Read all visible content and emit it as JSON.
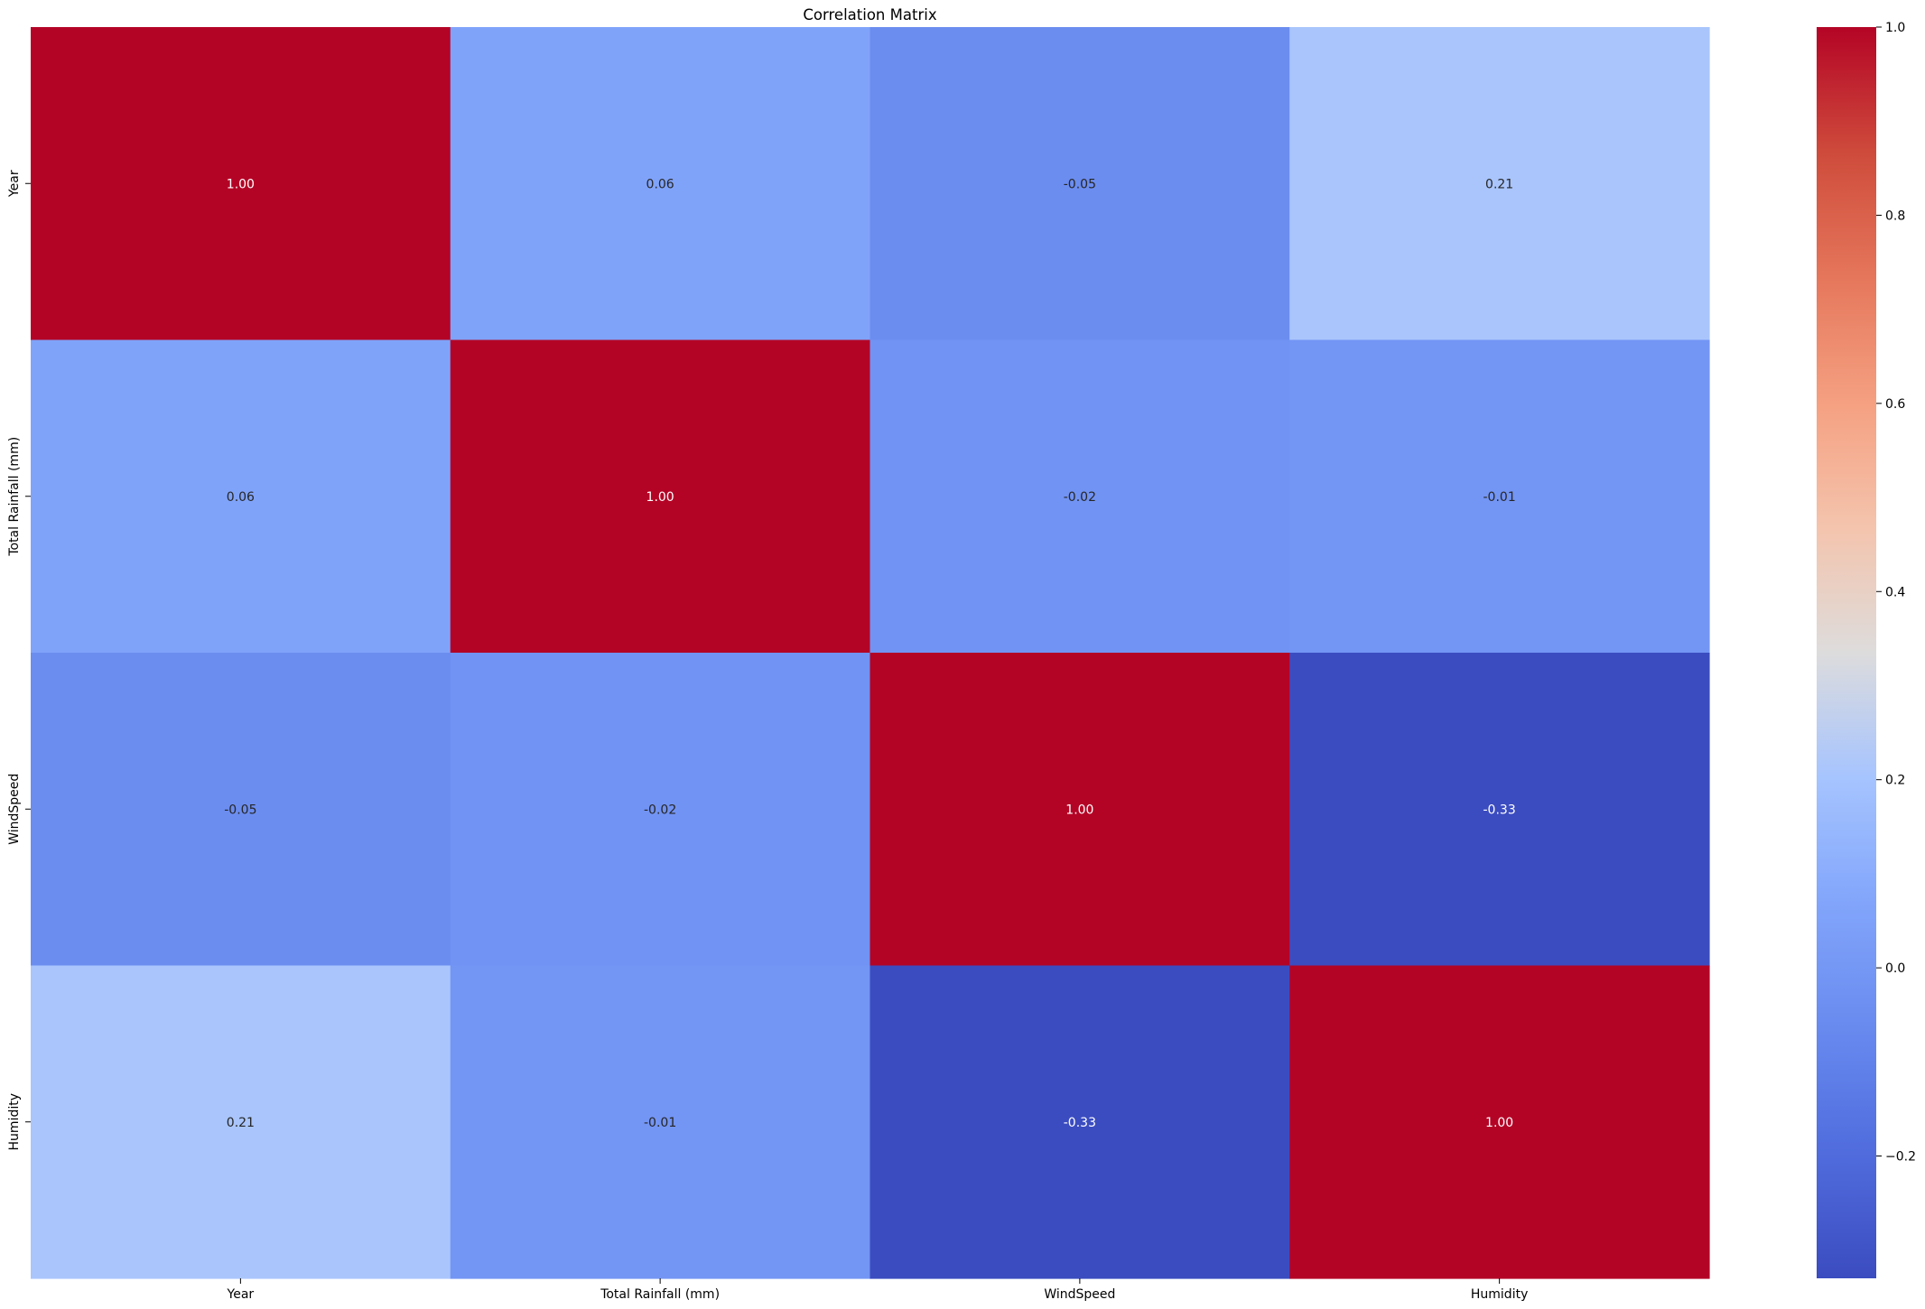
{
  "chart_data": {
    "type": "heatmap",
    "title": "Correlation Matrix",
    "xlabel": "",
    "ylabel": "",
    "x_labels": [
      "Year",
      "Total Rainfall (mm)",
      "WindSpeed",
      "Humidity"
    ],
    "y_labels": [
      "Year",
      "Total Rainfall (mm)",
      "WindSpeed",
      "Humidity"
    ],
    "matrix": [
      [
        1.0,
        0.06,
        -0.05,
        0.21
      ],
      [
        0.06,
        1.0,
        -0.02,
        -0.01
      ],
      [
        -0.05,
        -0.02,
        1.0,
        -0.33
      ],
      [
        0.21,
        -0.01,
        -0.33,
        1.0
      ]
    ],
    "cell_labels": [
      [
        "1.00",
        "0.06",
        "-0.05",
        "0.21"
      ],
      [
        "0.06",
        "1.00",
        "-0.02",
        "-0.01"
      ],
      [
        "-0.05",
        "-0.02",
        "1.00",
        "-0.33"
      ],
      [
        "0.21",
        "-0.01",
        "-0.33",
        "1.00"
      ]
    ],
    "colormap": "coolwarm",
    "color_range": [
      -0.33,
      1.0
    ],
    "colorbar": {
      "ticks": [
        -0.2,
        0.0,
        0.2,
        0.4,
        0.6,
        0.8,
        1.0
      ],
      "tick_labels": [
        "−0.2",
        "0.0",
        "0.2",
        "0.4",
        "0.6",
        "0.8",
        "1.0"
      ]
    },
    "grid": false
  }
}
